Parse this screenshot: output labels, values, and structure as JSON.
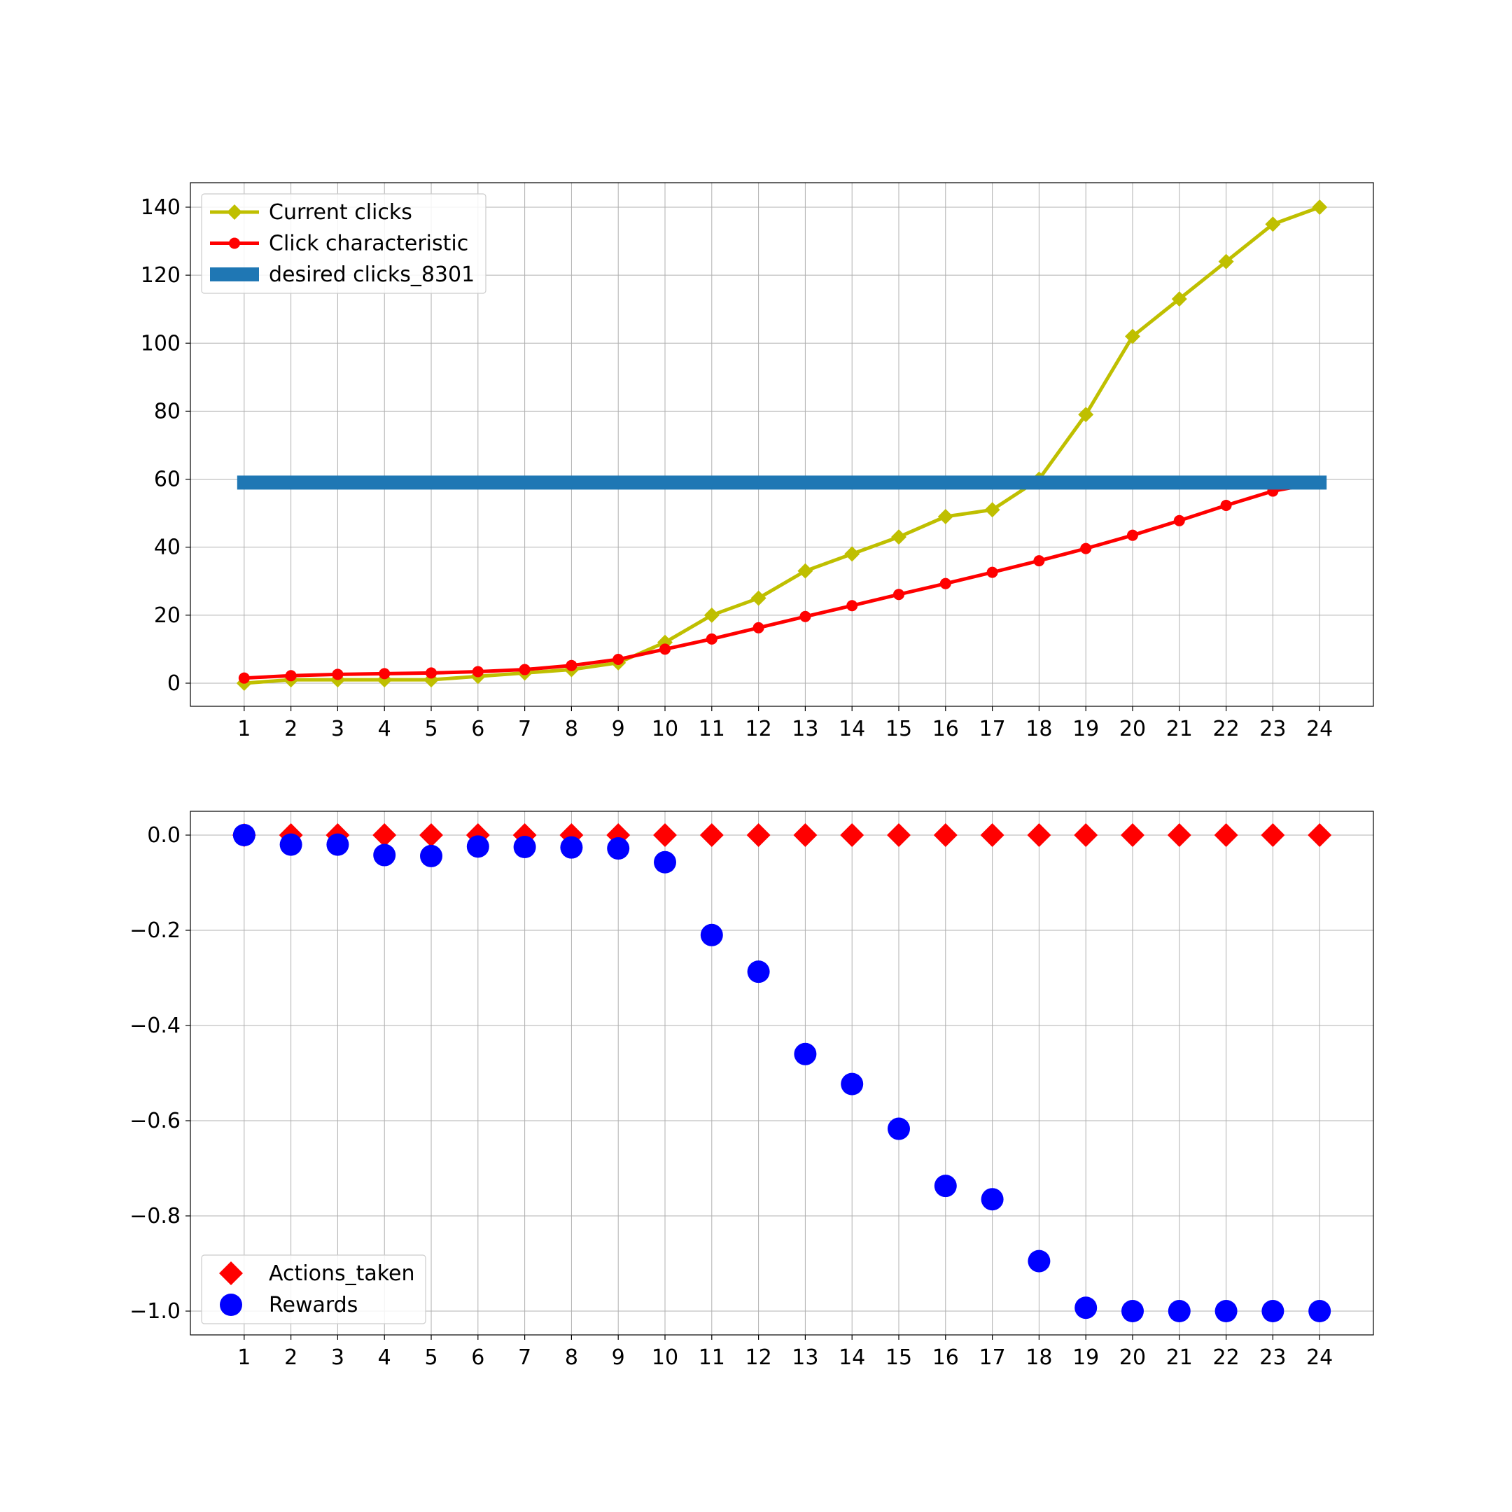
{
  "chart_data": [
    {
      "type": "line",
      "x": [
        1,
        2,
        3,
        4,
        5,
        6,
        7,
        8,
        9,
        10,
        11,
        12,
        13,
        14,
        15,
        16,
        17,
        18,
        19,
        20,
        21,
        22,
        23,
        24
      ],
      "x_ticks": [
        "1",
        "2",
        "3",
        "4",
        "5",
        "6",
        "7",
        "8",
        "9",
        "10",
        "11",
        "12",
        "13",
        "14",
        "15",
        "16",
        "17",
        "18",
        "19",
        "20",
        "21",
        "22",
        "23",
        "24"
      ],
      "xlim": [
        -0.15,
        25.15
      ],
      "ylim": [
        -6.8,
        147.2
      ],
      "y_ticks": [
        0,
        20,
        40,
        60,
        80,
        100,
        120,
        140
      ],
      "y_tick_labels": [
        "0",
        "20",
        "40",
        "60",
        "80",
        "100",
        "120",
        "140"
      ],
      "grid": true,
      "legend_position": "upper-left",
      "series": [
        {
          "name": "Current clicks",
          "color": "#bfbf00",
          "marker": "diamond",
          "values": [
            0,
            1,
            1,
            1,
            1,
            2,
            3,
            4,
            6,
            12,
            20,
            25,
            33,
            38,
            43,
            49,
            51,
            60,
            79,
            102,
            113,
            124,
            135,
            140
          ]
        },
        {
          "name": "Click characteristic",
          "color": "#ff0000",
          "marker": "circle",
          "values": [
            1.5,
            2.2,
            2.6,
            2.8,
            3.0,
            3.4,
            4.0,
            5.2,
            7.0,
            10.0,
            13.0,
            16.3,
            19.6,
            22.8,
            26.1,
            29.3,
            32.6,
            36.0,
            39.6,
            43.5,
            47.8,
            52.3,
            56.5,
            59.0
          ]
        },
        {
          "name": "desired clicks_8301",
          "color": "#1f77b4",
          "marker": "band",
          "constant": 59.0,
          "x_from": 1,
          "x_to": 24
        }
      ]
    },
    {
      "type": "scatter",
      "x": [
        1,
        2,
        3,
        4,
        5,
        6,
        7,
        8,
        9,
        10,
        11,
        12,
        13,
        14,
        15,
        16,
        17,
        18,
        19,
        20,
        21,
        22,
        23,
        24
      ],
      "x_ticks": [
        "1",
        "2",
        "3",
        "4",
        "5",
        "6",
        "7",
        "8",
        "9",
        "10",
        "11",
        "12",
        "13",
        "14",
        "15",
        "16",
        "17",
        "18",
        "19",
        "20",
        "21",
        "22",
        "23",
        "24"
      ],
      "xlim": [
        -0.15,
        25.15
      ],
      "ylim": [
        -1.05,
        0.05
      ],
      "y_ticks": [
        0.0,
        -0.2,
        -0.4,
        -0.6,
        -0.8,
        -1.0
      ],
      "y_tick_labels": [
        "0.0",
        "−0.2",
        "−0.4",
        "−0.6",
        "−0.8",
        "−1.0"
      ],
      "grid": true,
      "legend_position": "lower-left",
      "series": [
        {
          "name": "Actions_taken",
          "color": "#ff0000",
          "marker": "diamond",
          "values": [
            0,
            0,
            0,
            0,
            0,
            0,
            0,
            0,
            0,
            0,
            0,
            0,
            0,
            0,
            0,
            0,
            0,
            0,
            0,
            0,
            0,
            0,
            0,
            0
          ]
        },
        {
          "name": "Rewards",
          "color": "#0000ff",
          "marker": "circle",
          "values": [
            0.0,
            -0.02,
            -0.02,
            -0.042,
            -0.044,
            -0.024,
            -0.025,
            -0.026,
            -0.028,
            -0.057,
            -0.21,
            -0.287,
            -0.46,
            -0.523,
            -0.617,
            -0.737,
            -0.765,
            -0.895,
            -0.993,
            -1.0,
            -1.0,
            -1.0,
            -1.0,
            -1.0
          ]
        }
      ]
    }
  ]
}
